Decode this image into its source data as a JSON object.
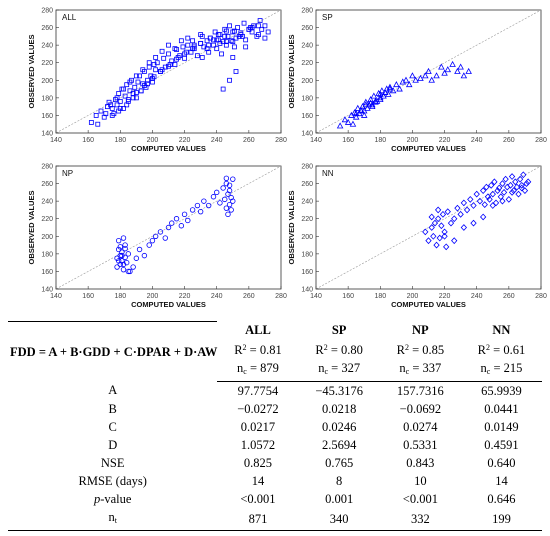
{
  "chart_data": [
    {
      "type": "scatter",
      "title": "ALL",
      "xlabel": "COMPUTED VALUES",
      "ylabel": "OBSERVED VALUES",
      "xlim": [
        140,
        280
      ],
      "ylim": [
        140,
        280
      ],
      "xticks": [
        "140",
        "160",
        "180",
        "200",
        "220",
        "240",
        "260",
        "280"
      ],
      "yticks": [
        "140",
        "160",
        "180",
        "200",
        "220",
        "240",
        "260",
        "280"
      ],
      "marker": "square",
      "color": "#0000ff",
      "reference_line": "1:1",
      "x": [
        162,
        165,
        168,
        170,
        172,
        173,
        175,
        176,
        177,
        178,
        179,
        180,
        181,
        182,
        183,
        184,
        185,
        186,
        187,
        188,
        189,
        190,
        191,
        192,
        193,
        194,
        195,
        196,
        197,
        198,
        199,
        200,
        201,
        202,
        203,
        205,
        207,
        208,
        210,
        212,
        214,
        215,
        217,
        219,
        220,
        222,
        224,
        225,
        226,
        228,
        230,
        231,
        232,
        234,
        235,
        236,
        238,
        239,
        240,
        241,
        242,
        243,
        244,
        245,
        246,
        247,
        248,
        249,
        250,
        251,
        252,
        253,
        255,
        257,
        258,
        260,
        262,
        263,
        265,
        267,
        268,
        270,
        272,
        166,
        171,
        174,
        178,
        182,
        186,
        190,
        194,
        198,
        202,
        206,
        210,
        214,
        218,
        222,
        226,
        230,
        234,
        238,
        242,
        246,
        250,
        254,
        258,
        262,
        266,
        270,
        175,
        180,
        185,
        190,
        195,
        200,
        205,
        210,
        215,
        220,
        225,
        230,
        235,
        240,
        245,
        250,
        255,
        260,
        179,
        184,
        188,
        193,
        197,
        201,
        206,
        211,
        216,
        221,
        226,
        231,
        236,
        241,
        246,
        251,
        256,
        261,
        266,
        244,
        248,
        252
      ],
      "y": [
        152,
        160,
        165,
        158,
        170,
        175,
        168,
        162,
        178,
        172,
        185,
        176,
        190,
        168,
        182,
        195,
        178,
        188,
        200,
        185,
        192,
        180,
        198,
        205,
        188,
        196,
        210,
        192,
        200,
        215,
        205,
        198,
        218,
        212,
        220,
        210,
        225,
        215,
        230,
        222,
        218,
        235,
        228,
        238,
        225,
        240,
        232,
        245,
        236,
        228,
        242,
        250,
        238,
        245,
        232,
        248,
        240,
        255,
        236,
        246,
        252,
        230,
        244,
        258,
        240,
        250,
        262,
        245,
        255,
        238,
        248,
        260,
        252,
        265,
        246,
        258,
        255,
        262,
        250,
        268,
        258,
        262,
        255,
        150,
        162,
        172,
        180,
        190,
        198,
        205,
        212,
        220,
        226,
        233,
        240,
        236,
        245,
        248,
        240,
        252,
        236,
        246,
        242,
        256,
        244,
        250,
        238,
        260,
        252,
        248,
        160,
        168,
        176,
        186,
        194,
        202,
        210,
        216,
        224,
        230,
        236,
        242,
        240,
        246,
        250,
        226,
        254,
        258,
        165,
        172,
        180,
        188,
        196,
        204,
        212,
        218,
        226,
        232,
        238,
        226,
        248,
        252,
        244,
        256,
        250,
        260,
        262,
        190,
        200,
        210
      ],
      "axis_limits": {
        "x": [
          140,
          280
        ],
        "y": [
          140,
          280
        ]
      }
    },
    {
      "type": "scatter",
      "title": "SP",
      "xlabel": "COMPUTED VALUES",
      "ylabel": "OBSERVED VALUES",
      "xlim": [
        140,
        280
      ],
      "ylim": [
        140,
        280
      ],
      "xticks": [
        "140",
        "160",
        "180",
        "200",
        "220",
        "240",
        "260",
        "280"
      ],
      "yticks": [
        "140",
        "160",
        "180",
        "200",
        "220",
        "240",
        "260",
        "280"
      ],
      "marker": "triangle",
      "color": "#0000ff",
      "reference_line": "1:1",
      "x": [
        155,
        158,
        160,
        162,
        163,
        164,
        165,
        166,
        167,
        168,
        169,
        170,
        171,
        172,
        173,
        174,
        175,
        176,
        177,
        178,
        179,
        180,
        181,
        182,
        183,
        184,
        185,
        186,
        188,
        190,
        192,
        194,
        196,
        198,
        200,
        202,
        205,
        208,
        210,
        212,
        215,
        218,
        220,
        222,
        225,
        228,
        230,
        232,
        235,
        165,
        168,
        171,
        174,
        177,
        180,
        183,
        186,
        170,
        175,
        180
      ],
      "y": [
        148,
        155,
        152,
        160,
        150,
        163,
        158,
        168,
        162,
        165,
        170,
        160,
        175,
        168,
        172,
        178,
        170,
        182,
        175,
        176,
        185,
        180,
        188,
        182,
        186,
        190,
        184,
        192,
        188,
        195,
        190,
        198,
        200,
        195,
        205,
        200,
        202,
        205,
        210,
        200,
        205,
        215,
        208,
        212,
        218,
        210,
        215,
        205,
        210,
        162,
        166,
        172,
        174,
        176,
        184,
        186,
        190,
        165,
        172,
        178
      ]
    },
    {
      "type": "scatter",
      "title": "NP",
      "xlabel": "COMPUTED VALUES",
      "ylabel": "OBSERVED VALUES",
      "xlim": [
        140,
        280
      ],
      "ylim": [
        140,
        280
      ],
      "xticks": [
        "140",
        "160",
        "180",
        "200",
        "220",
        "240",
        "260",
        "280"
      ],
      "yticks": [
        "140",
        "160",
        "180",
        "200",
        "220",
        "240",
        "260",
        "280"
      ],
      "marker": "circle",
      "color": "#0000ff",
      "reference_line": "1:1",
      "x": [
        178,
        178,
        179,
        179,
        180,
        180,
        180,
        181,
        181,
        182,
        182,
        183,
        183,
        184,
        185,
        186,
        188,
        190,
        192,
        195,
        198,
        200,
        202,
        205,
        208,
        210,
        212,
        215,
        218,
        220,
        222,
        225,
        228,
        230,
        232,
        235,
        238,
        240,
        242,
        244,
        245,
        246,
        246,
        247,
        247,
        248,
        248,
        249,
        249,
        250,
        250,
        179,
        181,
        183,
        185,
        182,
        248,
        246
      ],
      "y": [
        165,
        175,
        185,
        195,
        168,
        178,
        188,
        172,
        182,
        198,
        162,
        176,
        190,
        170,
        180,
        160,
        165,
        175,
        185,
        178,
        190,
        195,
        200,
        205,
        198,
        210,
        215,
        220,
        212,
        225,
        218,
        230,
        235,
        228,
        240,
        235,
        245,
        250,
        238,
        255,
        242,
        232,
        260,
        248,
        225,
        252,
        236,
        244,
        230,
        265,
        240,
        172,
        178,
        186,
        160,
        168,
        258,
        266
      ]
    },
    {
      "type": "scatter",
      "title": "NN",
      "xlabel": "COMPUTED VALUES",
      "ylabel": "OBSERVED VALUES",
      "xlim": [
        140,
        280
      ],
      "ylim": [
        140,
        280
      ],
      "xticks": [
        "140",
        "160",
        "180",
        "200",
        "220",
        "240",
        "260",
        "280"
      ],
      "yticks": [
        "140",
        "160",
        "180",
        "200",
        "220",
        "240",
        "260",
        "280"
      ],
      "marker": "diamond",
      "color": "#0000ff",
      "reference_line": "1:1",
      "x": [
        208,
        210,
        212,
        213,
        214,
        215,
        216,
        217,
        218,
        219,
        220,
        221,
        222,
        224,
        226,
        228,
        230,
        232,
        234,
        236,
        238,
        240,
        242,
        244,
        245,
        246,
        247,
        248,
        249,
        250,
        251,
        252,
        253,
        254,
        255,
        256,
        257,
        258,
        259,
        260,
        261,
        262,
        263,
        264,
        265,
        266,
        267,
        268,
        269,
        270,
        271,
        272,
        212,
        216,
        220,
        226,
        232,
        238,
        244,
        250,
        256,
        262,
        268
      ],
      "y": [
        205,
        195,
        210,
        200,
        215,
        190,
        220,
        198,
        212,
        225,
        205,
        188,
        228,
        215,
        220,
        232,
        225,
        238,
        230,
        242,
        235,
        248,
        240,
        252,
        236,
        256,
        245,
        242,
        258,
        248,
        262,
        238,
        252,
        255,
        245,
        260,
        250,
        265,
        256,
        242,
        258,
        268,
        252,
        262,
        256,
        248,
        265,
        258,
        270,
        252,
        260,
        262,
        222,
        230,
        200,
        195,
        210,
        215,
        222,
        235,
        240,
        250,
        255
      ]
    }
  ],
  "table": {
    "equation": "FDD = A + B·GDD + C·DPAR + D·AW",
    "columns": [
      "ALL",
      "SP",
      "NP",
      "NN"
    ],
    "r2_label": "R",
    "r2_values": [
      "0.81",
      "0.80",
      "0.85",
      "0.61"
    ],
    "nc_label": "n",
    "nc_sub": "c",
    "nc_values": [
      "879",
      "327",
      "337",
      "215"
    ],
    "rows": [
      {
        "label": "A",
        "values": [
          "97.7754",
          "−45.3176",
          "157.7316",
          "65.9939"
        ]
      },
      {
        "label": "B",
        "values": [
          "−0.0272",
          "0.0218",
          "−0.0692",
          "0.0441"
        ]
      },
      {
        "label": "C",
        "values": [
          "0.0217",
          "0.0246",
          "0.0274",
          "0.0149"
        ]
      },
      {
        "label": "D",
        "values": [
          "1.0572",
          "2.5694",
          "0.5331",
          "0.4591"
        ]
      },
      {
        "label": "NSE",
        "values": [
          "0.825",
          "0.765",
          "0.843",
          "0.640"
        ]
      },
      {
        "label": "RMSE (days)",
        "values": [
          "14",
          "8",
          "10",
          "14"
        ]
      },
      {
        "label": "-value",
        "values": [
          "<0.001",
          "0.001",
          "<0.001",
          "0.646"
        ]
      }
    ],
    "pvalue_italic": "p",
    "nt_label": "n",
    "nt_sub": "t",
    "nt_values": [
      "871",
      "340",
      "332",
      "199"
    ]
  }
}
